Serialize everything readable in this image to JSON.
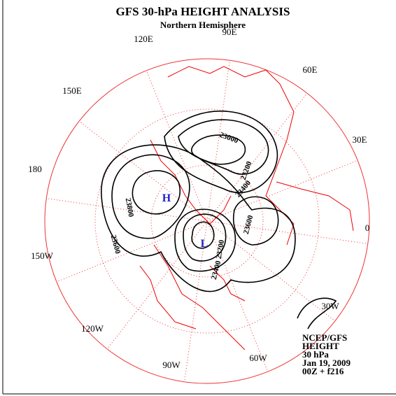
{
  "header": {
    "title": "GFS 30-hPa HEIGHT ANALYSIS",
    "subtitle": "Northern Hemisphere"
  },
  "longitude_labels": [
    "90E",
    "60E",
    "30E",
    "0",
    "30W",
    "60W",
    "90W",
    "120W",
    "150W",
    "180",
    "150E",
    "120E"
  ],
  "contour_labels": [
    "23000",
    "23200",
    "23400",
    "23600",
    "23800",
    "23600",
    "23200",
    "23400"
  ],
  "centers": [
    "H",
    "L"
  ],
  "info": [
    "NCEP/GFS",
    "HEIGHT",
    "30 hPa",
    "Jan 19, 2009",
    "00Z + f216"
  ]
}
